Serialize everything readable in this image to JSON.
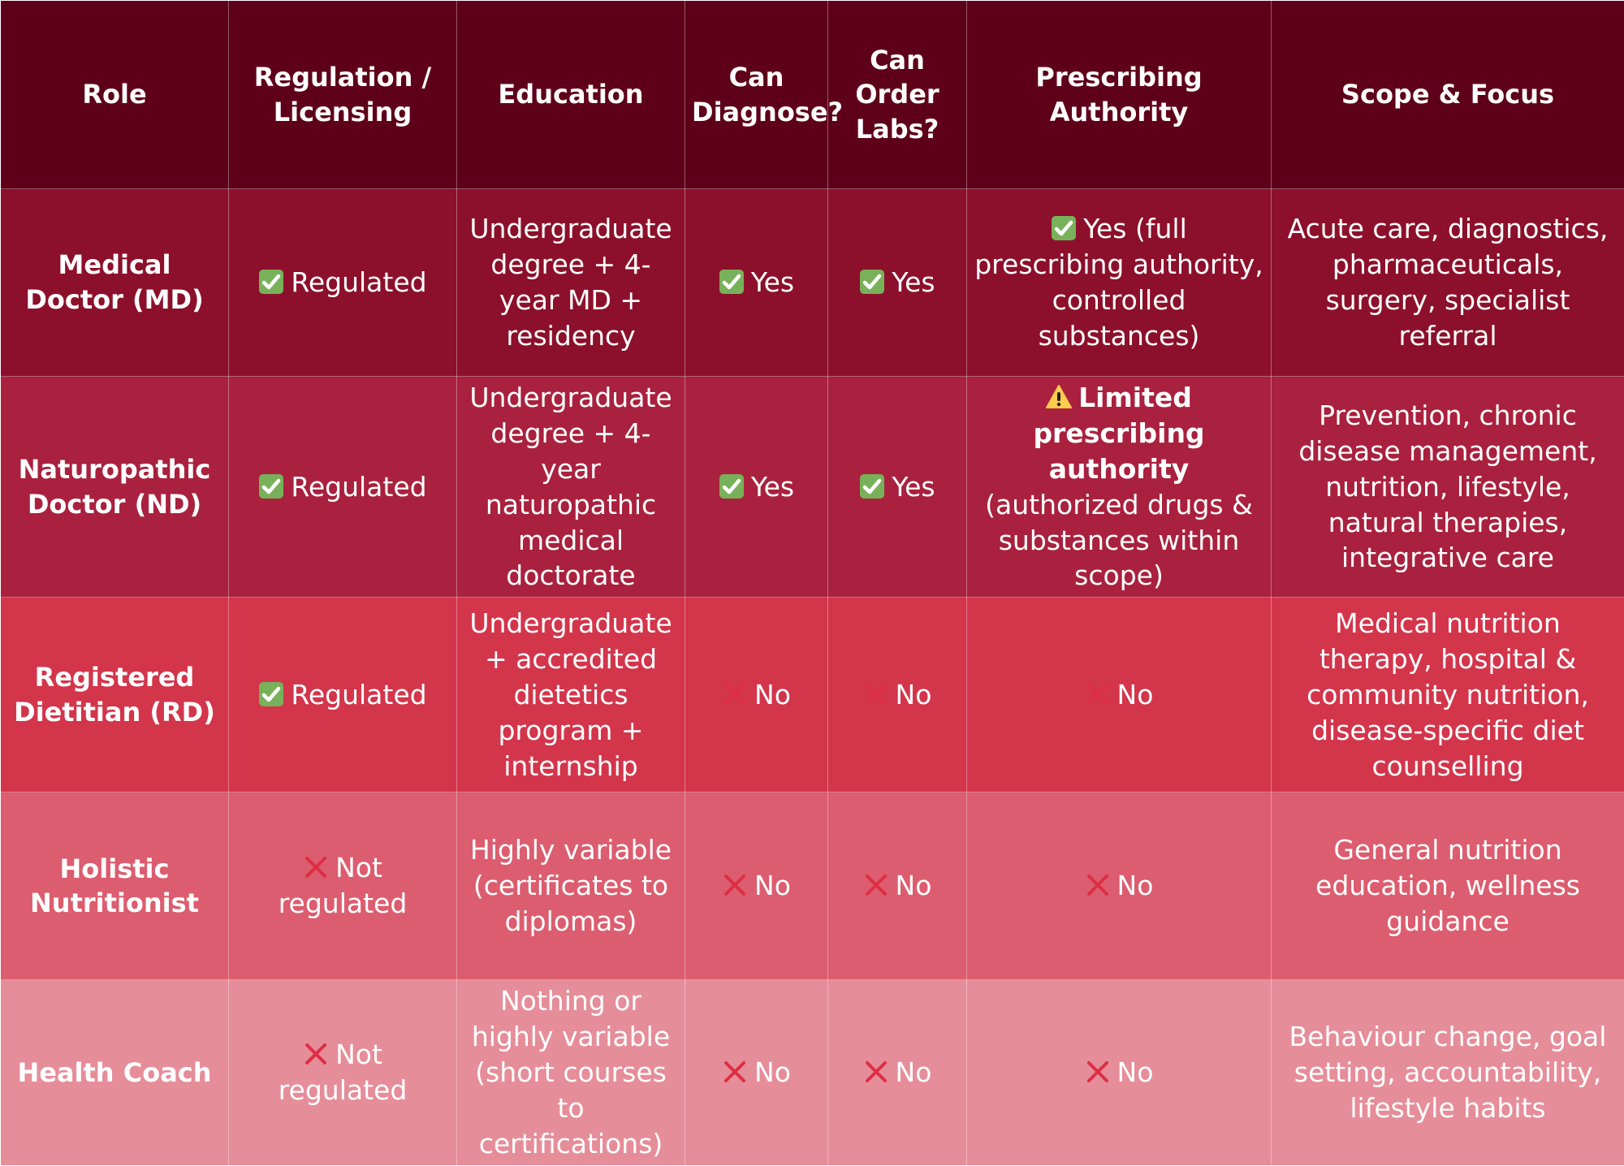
{
  "header": {
    "columns": [
      "Role",
      "Regulation / Licensing",
      "Education",
      "Can Diagnose?",
      "Can Order Labs?",
      "Prescribing Authority",
      "Scope & Focus"
    ]
  },
  "rows": [
    [
      "Medical Doctor (MD)",
      "Regulated",
      "Undergraduate degree + 4-year MD + residency",
      "Yes",
      "Yes",
      "Yes (full prescribing authority, controlled substances)",
      "Acute care, diagnostics, pharmaceuticals, surgery, specialist referral"
    ],
    [
      "Naturopathic Doctor (ND)",
      "Regulated",
      "Undergraduate degree + 4-year naturopathic medical doctorate",
      "Yes",
      "Yes",
      {
        "bold": "Limited prescribing authority",
        "text": "(authorized drugs & substances within scope)"
      },
      "Prevention, chronic disease management, nutrition, lifestyle, natural therapies, integrative care"
    ],
    [
      "Registered Dietitian (RD)",
      "Regulated",
      "Undergraduate + accredited dietetics program + internship",
      "No",
      "No",
      "No",
      "Medical nutrition therapy, hospital & community nutrition, disease-specific diet counselling"
    ],
    [
      "Holistic Nutritionist",
      "Not regulated",
      "Highly variable (certificates to diplomas)",
      "No",
      "No",
      "No",
      "General nutrition education, wellness guidance"
    ],
    [
      "Health Coach",
      "Not regulated",
      "Nothing or highly variable (short courses to certifications)",
      "No",
      "No",
      "No",
      "Behaviour change, goal setting, accountability, lifestyle habits"
    ]
  ]
}
